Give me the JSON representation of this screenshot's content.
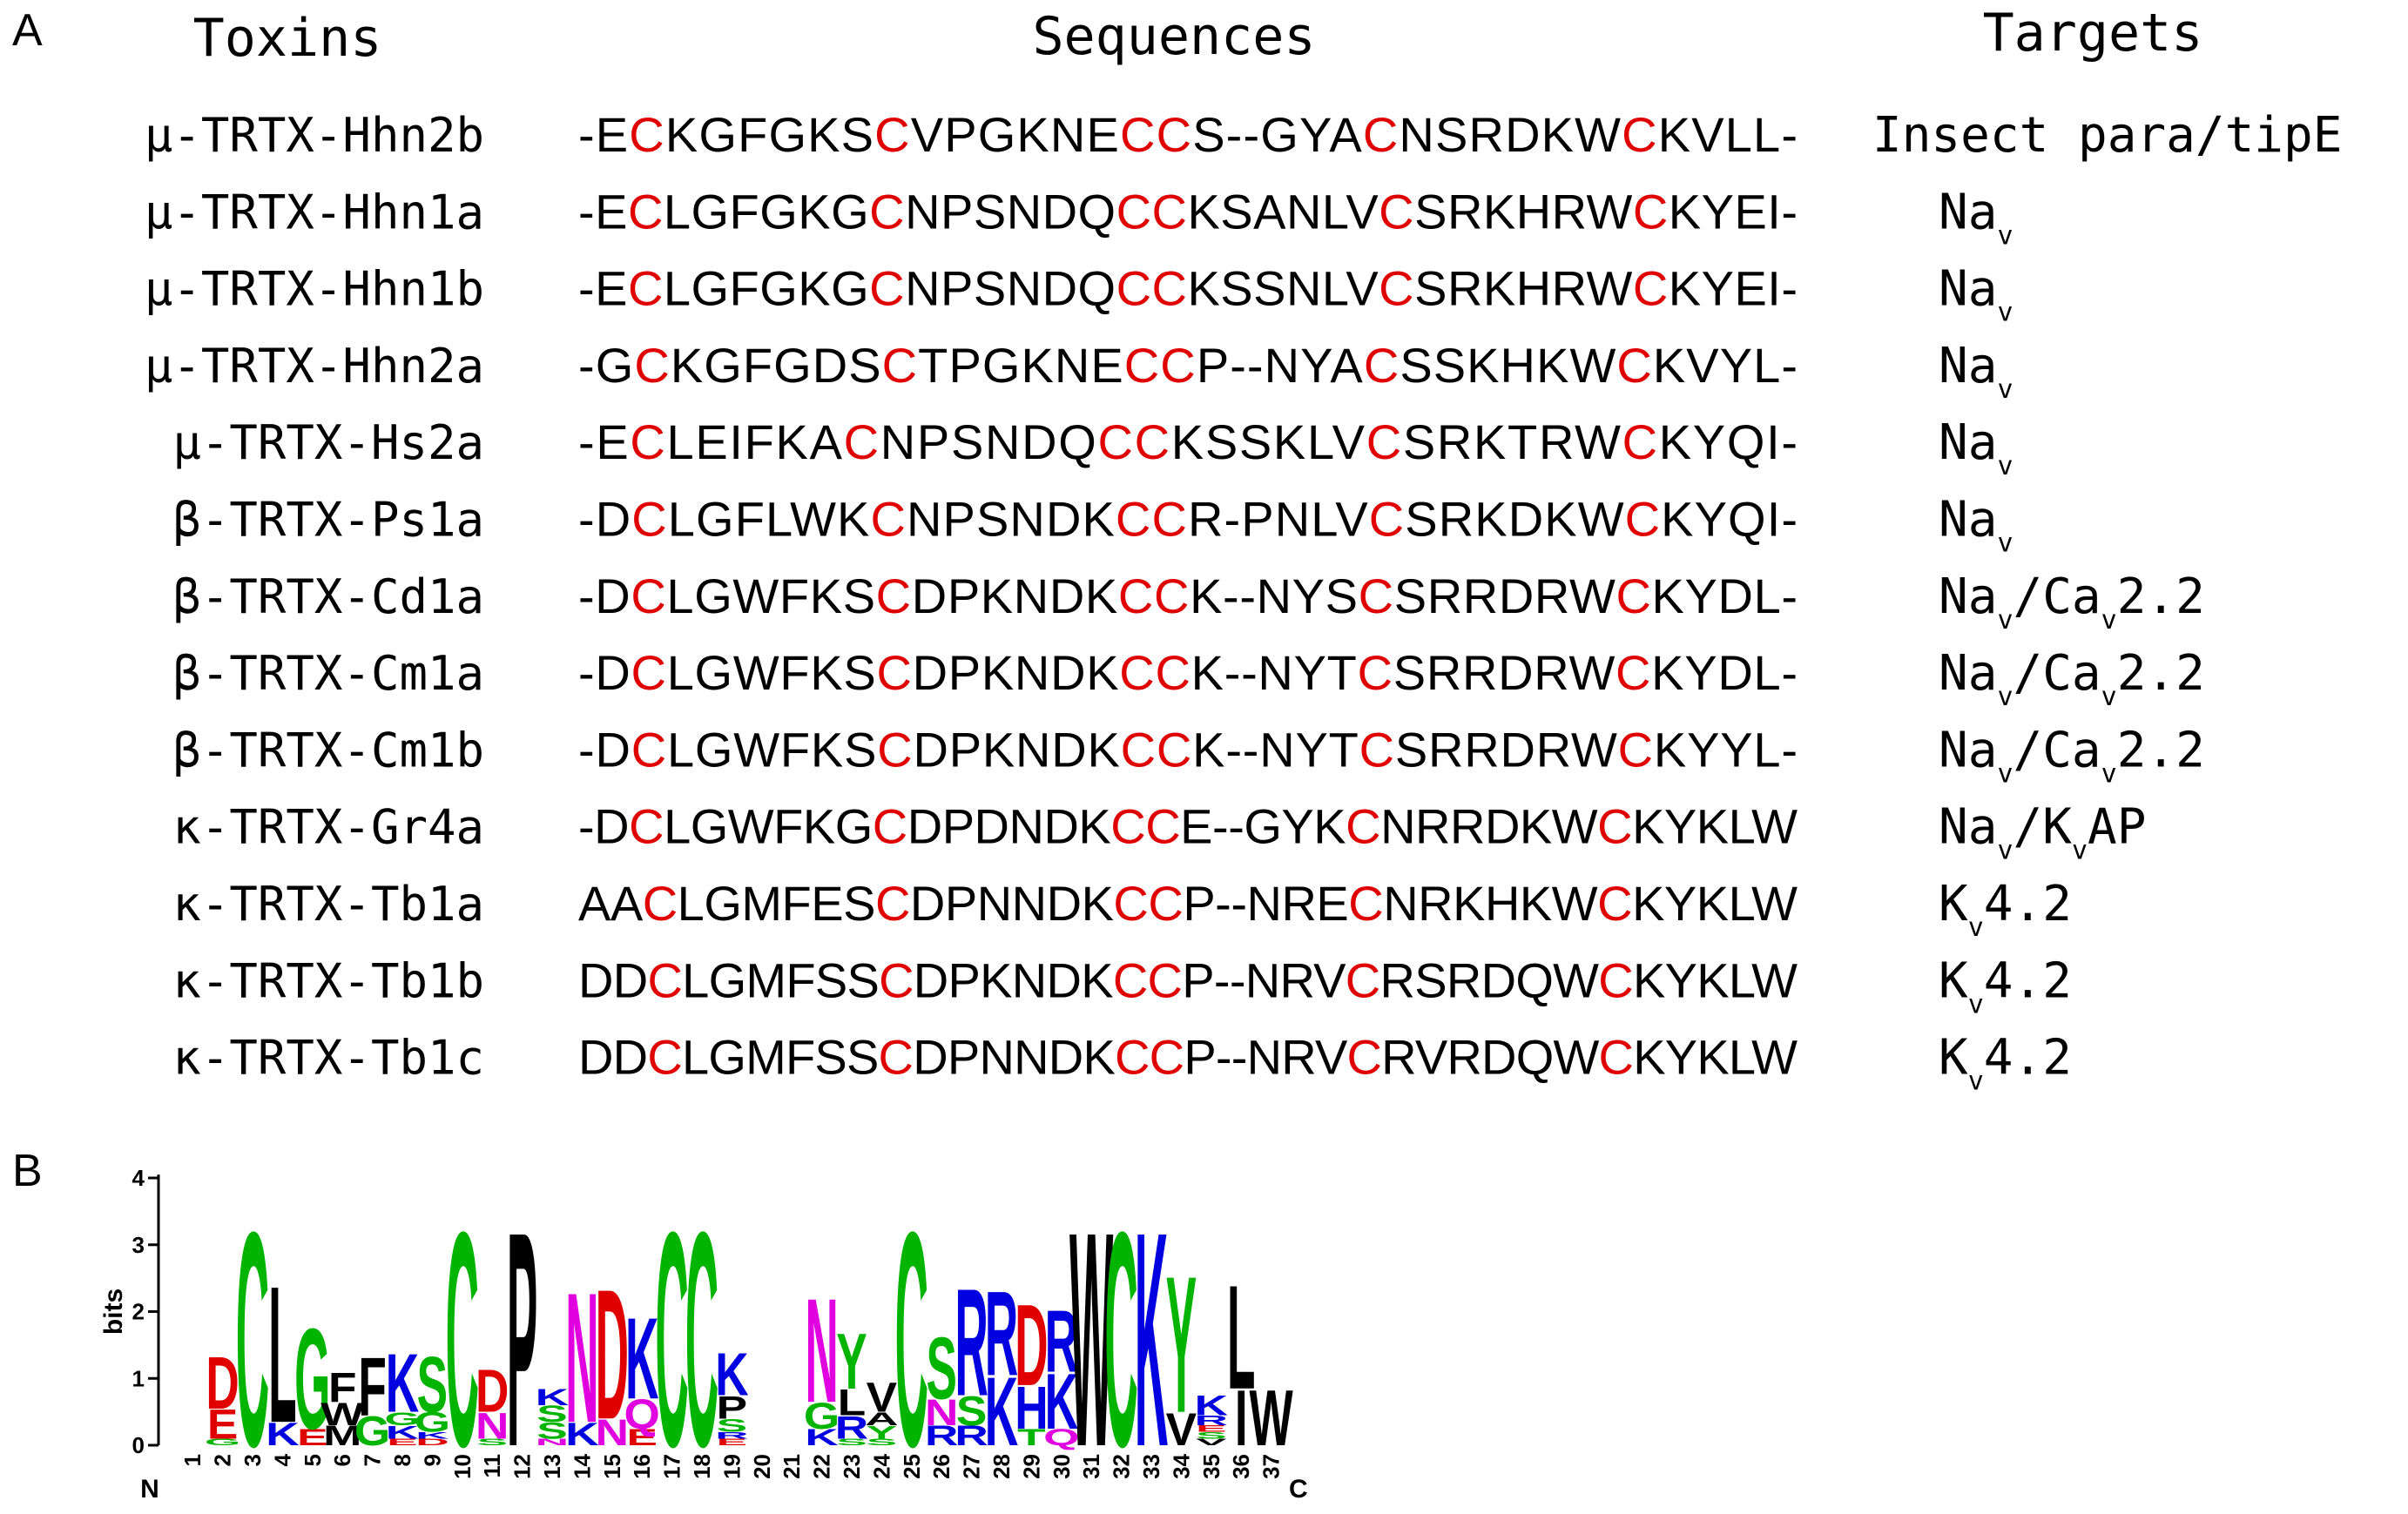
{
  "panel_a": {
    "label": "A",
    "headers": {
      "toxins": "Toxins",
      "sequences": "Sequences",
      "targets": "Targets"
    },
    "highlight_color": "#e00000",
    "rows": [
      {
        "toxin": "μ-TRTX-Hhn2b",
        "sequence": "-ECKGFGKSCVPGKNECCS--GYACNSRDKWCKVLL-",
        "target": [
          {
            "t": "Insect para/tipE"
          }
        ]
      },
      {
        "toxin": "μ-TRTX-Hhn1a",
        "sequence": "-ECLGFGKGCNPSNDQCCKSANLVCSRKHRWCKYEI-",
        "target": [
          {
            "t": "Na"
          },
          {
            "s": "v"
          }
        ]
      },
      {
        "toxin": "μ-TRTX-Hhn1b",
        "sequence": "-ECLGFGKGCNPSNDQCCKSSNLVCSRKHRWCKYEI-",
        "target": [
          {
            "t": "Na"
          },
          {
            "s": "v"
          }
        ]
      },
      {
        "toxin": "μ-TRTX-Hhn2a",
        "sequence": "-GCKGFGDSCTPGKNECCP--NYACSSKHKWCKVYL-",
        "target": [
          {
            "t": "Na"
          },
          {
            "s": "v"
          }
        ]
      },
      {
        "toxin": "μ-TRTX-Hs2a",
        "sequence": "-ECLEIFKACNPSNDQCCKSSKLVCSRKTRWCKYQI-",
        "target": [
          {
            "t": "Na"
          },
          {
            "s": "v"
          }
        ]
      },
      {
        "toxin": "β-TRTX-Ps1a",
        "sequence": "-DCLGFLWKCNPSNDKCCR-PNLVCSRKDKWCKYQI-",
        "target": [
          {
            "t": "Na"
          },
          {
            "s": "v"
          }
        ]
      },
      {
        "toxin": "β-TRTX-Cd1a",
        "sequence": "-DCLGWFKSCDPKNDKCCK--NYSCSRRDRWCKYDL-",
        "target": [
          {
            "t": "Na"
          },
          {
            "s": "v"
          },
          {
            "t": "/Ca"
          },
          {
            "s": "v"
          },
          {
            "t": "2.2"
          }
        ]
      },
      {
        "toxin": "β-TRTX-Cm1a",
        "sequence": "-DCLGWFKSCDPKNDKCCK--NYTCSRRDRWCKYDL-",
        "target": [
          {
            "t": "Na"
          },
          {
            "s": "v"
          },
          {
            "t": "/Ca"
          },
          {
            "s": "v"
          },
          {
            "t": "2.2"
          }
        ]
      },
      {
        "toxin": "β-TRTX-Cm1b",
        "sequence": "-DCLGWFKSCDPKNDKCCK--NYTCSRRDRWCKYYL-",
        "target": [
          {
            "t": "Na"
          },
          {
            "s": "v"
          },
          {
            "t": "/Ca"
          },
          {
            "s": "v"
          },
          {
            "t": "2.2"
          }
        ]
      },
      {
        "toxin": "κ-TRTX-Gr4a",
        "sequence": "-DCLGWFKGCDPDNDKCCE--GYKCNRRDKWCKYKLW",
        "target": [
          {
            "t": "Na"
          },
          {
            "s": "v"
          },
          {
            "t": "/K"
          },
          {
            "s": "v"
          },
          {
            "t": "AP"
          }
        ]
      },
      {
        "toxin": "κ-TRTX-Tb1a",
        "sequence": "AACLGMFESCDPNNDKCCP--NRECNRKHKWCKYKLW",
        "target": [
          {
            "t": "K"
          },
          {
            "s": "v"
          },
          {
            "t": "4.2"
          }
        ]
      },
      {
        "toxin": "κ-TRTX-Tb1b",
        "sequence": "DDCLGMFSSCDPKNDKCCP--NRVCRSRDQWCKYKLW",
        "target": [
          {
            "t": "K"
          },
          {
            "s": "v"
          },
          {
            "t": "4.2"
          }
        ]
      },
      {
        "toxin": "κ-TRTX-Tb1c",
        "sequence": "DDCLGMFSSCDPNNDKCCP--NRVCRVRDQWCKYKLW",
        "target": [
          {
            "t": "K"
          },
          {
            "s": "v"
          },
          {
            "t": "4.2"
          }
        ]
      }
    ]
  },
  "panel_b": {
    "label": "B",
    "ylabel": "bits",
    "yticks": [
      "0",
      "1",
      "2",
      "3",
      "4"
    ],
    "ymax": 4.3,
    "n_label": "N",
    "c_label": "C",
    "colors": {
      "G": "#00b400",
      "S": "#00b400",
      "T": "#00b400",
      "Y": "#00b400",
      "C": "#00b400",
      "N": "#e000e0",
      "Q": "#e000e0",
      "K": "#0000e0",
      "R": "#0000e0",
      "H": "#0000e0",
      "D": "#e00000",
      "E": "#e00000",
      "P": "#000000",
      "A": "#000000",
      "W": "#000000",
      "F": "#000000",
      "L": "#000000",
      "V": "#000000",
      "I": "#000000",
      "M": "#000000"
    },
    "positions": [
      {
        "pos": "1",
        "letters": []
      },
      {
        "pos": "2",
        "letters": [
          [
            "G",
            0.1
          ],
          [
            "E",
            0.45
          ],
          [
            "D",
            0.8
          ]
        ]
      },
      {
        "pos": "3",
        "letters": [
          [
            "C",
            3.3
          ]
        ]
      },
      {
        "pos": "4",
        "letters": [
          [
            "K",
            0.35
          ],
          [
            "L",
            2.1
          ]
        ]
      },
      {
        "pos": "5",
        "letters": [
          [
            "E",
            0.25
          ],
          [
            "G",
            1.55
          ]
        ]
      },
      {
        "pos": "6",
        "letters": [
          [
            "M",
            0.3
          ],
          [
            "W",
            0.35
          ],
          [
            "F",
            0.45
          ]
        ]
      },
      {
        "pos": "7",
        "letters": [
          [
            "G",
            0.45
          ],
          [
            "F",
            0.9
          ]
        ]
      },
      {
        "pos": "8",
        "letters": [
          [
            "E",
            0.1
          ],
          [
            "K",
            0.2
          ],
          [
            "G",
            0.2
          ],
          [
            "K",
            0.9
          ]
        ]
      },
      {
        "pos": "9",
        "letters": [
          [
            "D",
            0.1
          ],
          [
            "K",
            0.1
          ],
          [
            "G",
            0.3
          ],
          [
            "S",
            0.85
          ]
        ]
      },
      {
        "pos": "10",
        "letters": [
          [
            "C",
            3.3
          ]
        ]
      },
      {
        "pos": "11",
        "letters": [
          [
            "S",
            0.1
          ],
          [
            "N",
            0.4
          ],
          [
            "D",
            0.65
          ]
        ]
      },
      {
        "pos": "12",
        "letters": [
          [
            "P",
            3.3
          ]
        ]
      },
      {
        "pos": "13",
        "letters": [
          [
            "N",
            0.1
          ],
          [
            "S",
            0.25
          ],
          [
            "S",
            0.25
          ],
          [
            "K",
            0.25
          ]
        ]
      },
      {
        "pos": "14",
        "letters": [
          [
            "K",
            0.35
          ],
          [
            "N",
            2.0
          ]
        ]
      },
      {
        "pos": "15",
        "letters": [
          [
            "N",
            0.4
          ],
          [
            "D",
            2.0
          ]
        ]
      },
      {
        "pos": "16",
        "letters": [
          [
            "E",
            0.25
          ],
          [
            "Q",
            0.45
          ],
          [
            "K",
            1.25
          ]
        ]
      },
      {
        "pos": "17",
        "letters": [
          [
            "C",
            3.3
          ]
        ]
      },
      {
        "pos": "18",
        "letters": [
          [
            "C",
            3.3
          ]
        ]
      },
      {
        "pos": "19",
        "letters": [
          [
            "E",
            0.1
          ],
          [
            "R",
            0.1
          ],
          [
            "S",
            0.2
          ],
          [
            "P",
            0.35
          ],
          [
            "K",
            0.65
          ]
        ]
      },
      {
        "pos": "20",
        "letters": []
      },
      {
        "pos": "21",
        "letters": []
      },
      {
        "pos": "22",
        "letters": [
          [
            "K",
            0.25
          ],
          [
            "G",
            0.4
          ],
          [
            "N",
            1.6
          ]
        ]
      },
      {
        "pos": "23",
        "letters": [
          [
            "S",
            0.1
          ],
          [
            "R",
            0.35
          ],
          [
            "L",
            0.4
          ],
          [
            "Y",
            0.85
          ]
        ]
      },
      {
        "pos": "24",
        "letters": [
          [
            "S",
            0.1
          ],
          [
            "Y",
            0.2
          ],
          [
            "A",
            0.2
          ],
          [
            "V",
            0.45
          ]
        ]
      },
      {
        "pos": "25",
        "letters": [
          [
            "C",
            3.3
          ]
        ]
      },
      {
        "pos": "26",
        "letters": [
          [
            "R",
            0.3
          ],
          [
            "N",
            0.4
          ],
          [
            "S",
            0.95
          ]
        ]
      },
      {
        "pos": "27",
        "letters": [
          [
            "R",
            0.3
          ],
          [
            "S",
            0.45
          ],
          [
            "R",
            1.65
          ]
        ]
      },
      {
        "pos": "28",
        "letters": [
          [
            "K",
            1.05
          ],
          [
            "R",
            1.3
          ]
        ]
      },
      {
        "pos": "29",
        "letters": [
          [
            "T",
            0.25
          ],
          [
            "H",
            0.65
          ],
          [
            "D",
            1.25
          ]
        ]
      },
      {
        "pos": "30",
        "letters": [
          [
            "Q",
            0.25
          ],
          [
            "K",
            0.85
          ],
          [
            "R",
            0.95
          ]
        ]
      },
      {
        "pos": "31",
        "letters": [
          [
            "W",
            3.3
          ]
        ]
      },
      {
        "pos": "32",
        "letters": [
          [
            "C",
            3.3
          ]
        ]
      },
      {
        "pos": "33",
        "letters": [
          [
            "K",
            3.3
          ]
        ]
      },
      {
        "pos": "34",
        "letters": [
          [
            "V",
            0.5
          ],
          [
            "Y",
            2.1
          ]
        ]
      },
      {
        "pos": "35",
        "letters": [
          [
            "V",
            0.1
          ],
          [
            "S",
            0.1
          ],
          [
            "E",
            0.1
          ],
          [
            "R",
            0.15
          ],
          [
            "K",
            0.3
          ]
        ]
      },
      {
        "pos": "36",
        "letters": [
          [
            "I",
            0.85
          ],
          [
            "L",
            1.6
          ]
        ]
      },
      {
        "pos": "37",
        "letters": [
          [
            "W",
            0.85
          ]
        ]
      }
    ]
  }
}
